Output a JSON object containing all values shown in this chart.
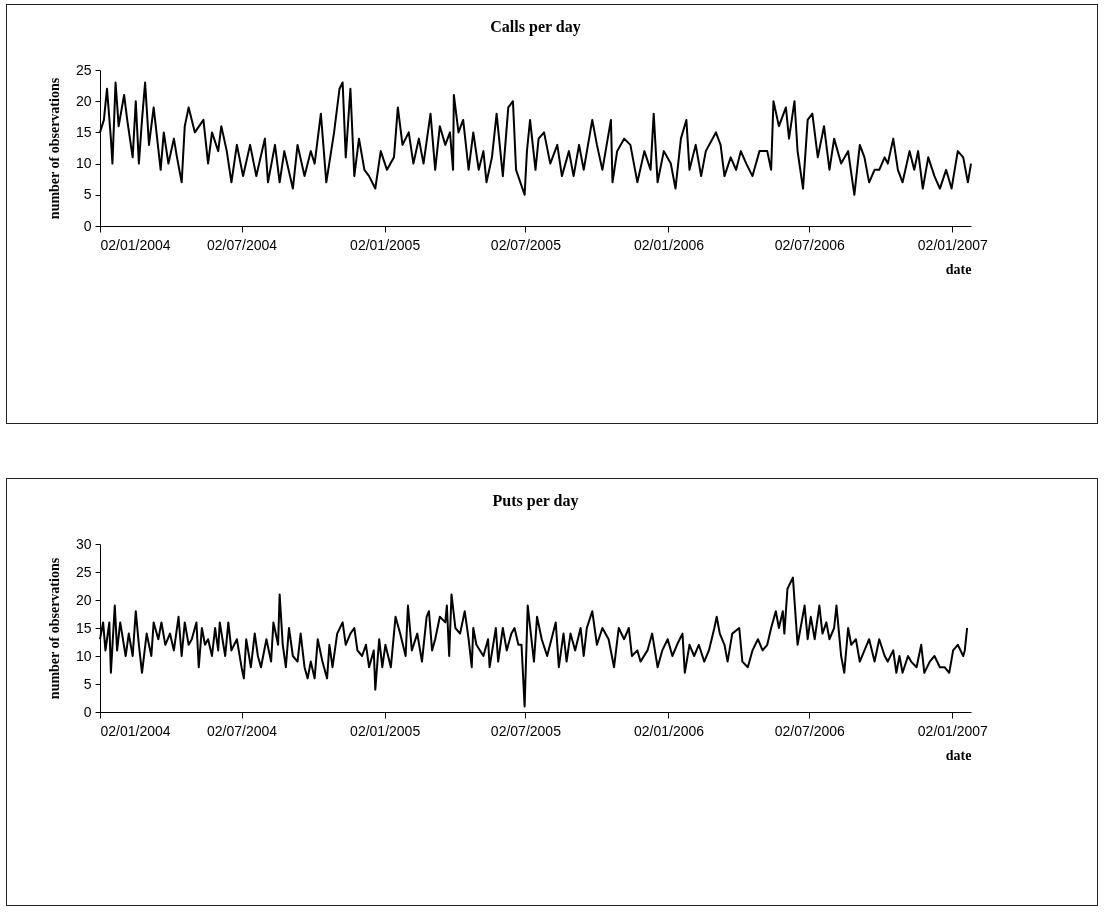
{
  "chart_data": [
    {
      "type": "line",
      "title": "Calls per day",
      "xlabel": "date",
      "ylabel": "number of observations",
      "color": "#000000",
      "xlim": [
        "2004-01-02",
        "2007-01-26"
      ],
      "ylim": [
        0,
        25
      ],
      "yticks": [
        0,
        5,
        10,
        15,
        20,
        25
      ],
      "xticks": [
        {
          "value": "2004-01-02",
          "label": "02/01/2004"
        },
        {
          "value": "2004-07-02",
          "label": "02/07/2004"
        },
        {
          "value": "2005-01-02",
          "label": "02/01/2005"
        },
        {
          "value": "2005-07-02",
          "label": "02/07/2005"
        },
        {
          "value": "2006-01-02",
          "label": "02/01/2006"
        },
        {
          "value": "2006-07-02",
          "label": "02/07/2006"
        },
        {
          "value": "2007-01-02",
          "label": "02/01/2007"
        }
      ],
      "x": [
        "2004-01-02",
        "2004-01-07",
        "2004-01-11",
        "2004-01-16",
        "2004-01-18",
        "2004-01-22",
        "2004-01-26",
        "2004-02-02",
        "2004-02-06",
        "2004-02-13",
        "2004-02-17",
        "2004-02-21",
        "2004-02-25",
        "2004-02-29",
        "2004-03-05",
        "2004-03-11",
        "2004-03-20",
        "2004-03-24",
        "2004-03-30",
        "2004-04-06",
        "2004-04-10",
        "2004-04-16",
        "2004-04-20",
        "2004-04-25",
        "2004-05-03",
        "2004-05-14",
        "2004-05-20",
        "2004-05-25",
        "2004-06-02",
        "2004-06-06",
        "2004-06-13",
        "2004-06-19",
        "2004-06-26",
        "2004-07-04",
        "2004-07-13",
        "2004-07-21",
        "2004-08-01",
        "2004-08-05",
        "2004-08-14",
        "2004-08-20",
        "2004-08-26",
        "2004-09-06",
        "2004-09-12",
        "2004-09-21",
        "2004-09-29",
        "2004-10-04",
        "2004-10-12",
        "2004-10-19",
        "2004-10-29",
        "2004-11-05",
        "2004-11-09",
        "2004-11-13",
        "2004-11-19",
        "2004-11-24",
        "2004-11-30",
        "2004-12-07",
        "2004-12-13",
        "2004-12-21",
        "2004-12-28",
        "2005-01-05",
        "2005-01-14",
        "2005-01-19",
        "2005-01-25",
        "2005-02-02",
        "2005-02-08",
        "2005-02-15",
        "2005-02-21",
        "2005-03-02",
        "2005-03-08",
        "2005-03-14",
        "2005-03-21",
        "2005-03-27",
        "2005-03-31",
        "2005-04-01",
        "2005-04-07",
        "2005-04-13",
        "2005-04-20",
        "2005-04-26",
        "2005-05-03",
        "2005-05-09",
        "2005-05-13",
        "2005-05-20",
        "2005-05-26",
        "2005-06-03",
        "2005-06-10",
        "2005-06-16",
        "2005-06-20",
        "2005-07-01",
        "2005-07-04",
        "2005-07-08",
        "2005-07-15",
        "2005-07-19",
        "2005-07-26",
        "2005-08-03",
        "2005-08-12",
        "2005-08-18",
        "2005-08-27",
        "2005-09-02",
        "2005-09-09",
        "2005-09-15",
        "2005-09-26",
        "2005-10-02",
        "2005-10-09",
        "2005-10-20",
        "2005-10-22",
        "2005-10-28",
        "2005-11-06",
        "2005-11-14",
        "2005-11-23",
        "2005-12-02",
        "2005-12-10",
        "2005-12-14",
        "2005-12-19",
        "2005-12-27",
        "2006-01-05",
        "2006-01-11",
        "2006-01-18",
        "2006-01-25",
        "2006-01-29",
        "2006-02-06",
        "2006-02-13",
        "2006-02-19",
        "2006-03-04",
        "2006-03-10",
        "2006-03-15",
        "2006-03-23",
        "2006-03-30",
        "2006-04-05",
        "2006-04-12",
        "2006-04-20",
        "2006-04-29",
        "2006-05-09",
        "2006-05-14",
        "2006-05-17",
        "2006-05-24",
        "2006-06-02",
        "2006-06-06",
        "2006-06-13",
        "2006-06-17",
        "2006-06-24",
        "2006-06-30",
        "2006-07-06",
        "2006-07-13",
        "2006-07-21",
        "2006-07-28",
        "2006-08-03",
        "2006-08-12",
        "2006-08-21",
        "2006-08-29",
        "2006-09-05",
        "2006-09-11",
        "2006-09-17",
        "2006-09-24",
        "2006-09-30",
        "2006-10-07",
        "2006-10-11",
        "2006-10-18",
        "2006-10-24",
        "2006-10-30",
        "2006-11-08",
        "2006-11-14",
        "2006-11-19",
        "2006-11-25",
        "2006-12-02",
        "2006-12-10",
        "2006-12-17",
        "2006-12-25",
        "2007-01-01",
        "2007-01-09",
        "2007-01-16",
        "2007-01-22",
        "2007-01-26"
      ],
      "values": [
        15,
        17,
        22,
        14,
        10,
        23,
        16,
        21,
        17,
        11,
        20,
        10,
        17,
        23,
        13,
        19,
        9,
        15,
        10,
        14,
        11,
        7,
        16,
        19,
        15,
        17,
        10,
        15,
        12,
        16,
        12,
        7,
        13,
        8,
        13,
        8,
        14,
        7,
        13,
        7,
        12,
        6,
        13,
        8,
        12,
        10,
        18,
        7,
        15,
        22,
        23,
        11,
        22,
        8,
        14,
        9,
        8,
        6,
        12,
        9,
        11,
        19,
        13,
        15,
        10,
        14,
        10,
        18,
        9,
        16,
        13,
        15,
        9,
        21,
        15,
        17,
        9,
        15,
        9,
        12,
        7,
        11,
        18,
        8,
        19,
        20,
        9,
        5,
        12,
        17,
        9,
        14,
        15,
        10,
        13,
        8,
        12,
        8,
        13,
        9,
        17,
        13,
        9,
        17,
        7,
        12,
        14,
        13,
        7,
        12,
        9,
        18,
        7,
        12,
        10,
        6,
        14,
        17,
        9,
        13,
        8,
        12,
        15,
        13,
        8,
        11,
        9,
        12,
        10,
        8,
        12,
        12,
        9,
        20,
        16,
        19,
        14,
        20,
        12,
        6,
        17,
        18,
        11,
        16,
        9,
        14,
        10,
        12,
        5,
        13,
        11,
        7,
        9,
        9,
        11,
        10,
        14,
        9,
        7,
        12,
        9,
        12,
        6,
        11,
        8,
        6,
        9,
        6,
        12,
        11,
        7,
        10
      ]
    },
    {
      "type": "line",
      "title": "Puts per day",
      "xlabel": "date",
      "ylabel": "number of observations",
      "color": "#000000",
      "xlim": [
        "2004-01-02",
        "2007-01-26"
      ],
      "ylim": [
        0,
        30
      ],
      "yticks": [
        0,
        5,
        10,
        15,
        20,
        25,
        30
      ],
      "xticks": [
        {
          "value": "2004-01-02",
          "label": "02/01/2004"
        },
        {
          "value": "2004-07-02",
          "label": "02/07/2004"
        },
        {
          "value": "2005-01-02",
          "label": "02/01/2005"
        },
        {
          "value": "2005-07-02",
          "label": "02/07/2005"
        },
        {
          "value": "2006-01-02",
          "label": "02/01/2006"
        },
        {
          "value": "2006-07-02",
          "label": "02/07/2006"
        },
        {
          "value": "2007-01-02",
          "label": "02/01/2007"
        }
      ],
      "x": [
        "2004-01-02",
        "2004-01-06",
        "2004-01-09",
        "2004-01-14",
        "2004-01-16",
        "2004-01-21",
        "2004-01-24",
        "2004-01-28",
        "2004-02-04",
        "2004-02-08",
        "2004-02-13",
        "2004-02-17",
        "2004-02-21",
        "2004-02-25",
        "2004-03-02",
        "2004-03-08",
        "2004-03-11",
        "2004-03-17",
        "2004-03-21",
        "2004-03-26",
        "2004-04-01",
        "2004-04-06",
        "2004-04-12",
        "2004-04-16",
        "2004-04-20",
        "2004-04-25",
        "2004-04-29",
        "2004-05-05",
        "2004-05-08",
        "2004-05-12",
        "2004-05-16",
        "2004-05-20",
        "2004-05-25",
        "2004-05-29",
        "2004-06-02",
        "2004-06-04",
        "2004-06-11",
        "2004-06-15",
        "2004-06-19",
        "2004-06-26",
        "2004-07-02",
        "2004-07-05",
        "2004-07-08",
        "2004-07-14",
        "2004-07-19",
        "2004-07-23",
        "2004-07-27",
        "2004-08-03",
        "2004-08-09",
        "2004-08-12",
        "2004-08-18",
        "2004-08-20",
        "2004-08-24",
        "2004-08-28",
        "2004-09-01",
        "2004-09-06",
        "2004-09-12",
        "2004-09-16",
        "2004-09-21",
        "2004-09-25",
        "2004-09-29",
        "2004-10-04",
        "2004-10-08",
        "2004-10-14",
        "2004-10-20",
        "2004-10-23",
        "2004-10-27",
        "2004-11-02",
        "2004-11-09",
        "2004-11-13",
        "2004-11-19",
        "2004-11-24",
        "2004-11-28",
        "2004-12-04",
        "2004-12-09",
        "2004-12-13",
        "2004-12-19",
        "2004-12-21",
        "2004-12-26",
        "2004-12-30",
        "2005-01-03",
        "2005-01-10",
        "2005-01-16",
        "2005-01-22",
        "2005-01-29",
        "2005-02-01",
        "2005-02-06",
        "2005-02-13",
        "2005-02-19",
        "2005-02-25",
        "2005-02-28",
        "2005-03-04",
        "2005-03-08",
        "2005-03-14",
        "2005-03-21",
        "2005-03-23",
        "2005-03-26",
        "2005-03-29",
        "2005-04-03",
        "2005-04-09",
        "2005-04-15",
        "2005-04-20",
        "2005-04-24",
        "2005-04-26",
        "2005-04-30",
        "2005-05-09",
        "2005-05-15",
        "2005-05-17",
        "2005-05-25",
        "2005-05-28",
        "2005-06-03",
        "2005-06-08",
        "2005-06-14",
        "2005-06-18",
        "2005-06-23",
        "2005-06-27",
        "2005-07-01",
        "2005-07-05",
        "2005-07-13",
        "2005-07-17",
        "2005-07-23",
        "2005-07-30",
        "2005-08-10",
        "2005-08-14",
        "2005-08-20",
        "2005-08-24",
        "2005-08-29",
        "2005-09-04",
        "2005-09-11",
        "2005-09-15",
        "2005-09-19",
        "2005-09-26",
        "2005-10-02",
        "2005-10-09",
        "2005-10-17",
        "2005-10-24",
        "2005-10-30",
        "2005-11-06",
        "2005-11-12",
        "2005-11-16",
        "2005-11-23",
        "2005-11-27",
        "2005-12-06",
        "2005-12-12",
        "2005-12-19",
        "2005-12-25",
        "2006-01-01",
        "2006-01-07",
        "2006-01-13",
        "2006-01-20",
        "2006-01-23",
        "2006-01-29",
        "2006-02-04",
        "2006-02-10",
        "2006-02-17",
        "2006-02-23",
        "2006-03-02",
        "2006-03-05",
        "2006-03-09",
        "2006-03-15",
        "2006-03-19",
        "2006-03-25",
        "2006-04-03",
        "2006-04-07",
        "2006-04-14",
        "2006-04-20",
        "2006-04-27",
        "2006-05-03",
        "2006-05-09",
        "2006-05-14",
        "2006-05-20",
        "2006-05-24",
        "2006-05-29",
        "2006-05-31",
        "2006-06-04",
        "2006-06-11",
        "2006-06-17",
        "2006-06-26",
        "2006-06-30",
        "2006-07-04",
        "2006-07-09",
        "2006-07-15",
        "2006-07-19",
        "2006-07-24",
        "2006-07-28",
        "2006-08-03",
        "2006-08-06",
        "2006-08-12",
        "2006-08-16",
        "2006-08-21",
        "2006-08-25",
        "2006-08-31",
        "2006-09-05",
        "2006-09-11",
        "2006-09-17",
        "2006-09-24",
        "2006-09-30",
        "2006-10-07",
        "2006-10-11",
        "2006-10-18",
        "2006-10-22",
        "2006-10-26",
        "2006-10-30",
        "2006-11-06",
        "2006-11-10",
        "2006-11-17",
        "2006-11-23",
        "2006-11-27",
        "2006-12-04",
        "2006-12-10",
        "2006-12-17",
        "2006-12-23",
        "2006-12-29",
        "2007-01-03",
        "2007-01-09",
        "2007-01-16",
        "2007-01-18",
        "2007-01-21"
      ],
      "values": [
        13,
        16,
        11,
        16,
        7,
        19,
        11,
        16,
        10,
        14,
        10,
        18,
        12,
        7,
        14,
        10,
        16,
        13,
        16,
        12,
        14,
        11,
        17,
        10,
        16,
        12,
        13,
        16,
        8,
        15,
        12,
        13,
        10,
        15,
        11,
        16,
        10,
        16,
        11,
        13,
        8,
        6,
        13,
        8,
        14,
        10,
        8,
        13,
        9,
        16,
        12,
        21,
        12,
        8,
        15,
        10,
        9,
        14,
        8,
        6,
        9,
        6,
        13,
        9,
        6,
        12,
        8,
        14,
        16,
        12,
        14,
        15,
        11,
        10,
        12,
        8,
        11,
        4,
        13,
        8,
        12,
        8,
        17,
        14,
        10,
        19,
        11,
        14,
        9,
        17,
        18,
        11,
        13,
        17,
        16,
        19,
        10,
        21,
        15,
        14,
        18,
        13,
        8,
        15,
        12,
        10,
        13,
        8,
        15,
        9,
        15,
        11,
        14,
        15,
        12,
        12,
        1,
        19,
        9,
        17,
        13,
        10,
        16,
        8,
        14,
        9,
        14,
        11,
        15,
        10,
        15,
        18,
        12,
        15,
        13,
        8,
        15,
        13,
        15,
        10,
        11,
        9,
        11,
        14,
        8,
        11,
        13,
        10,
        12,
        14,
        7,
        12,
        10,
        12,
        9,
        11,
        15,
        17,
        14,
        12,
        9,
        14,
        15,
        9,
        8,
        11,
        13,
        11,
        12,
        15,
        18,
        15,
        18,
        14,
        22,
        24,
        12,
        19,
        13,
        17,
        13,
        19,
        14,
        16,
        13,
        15,
        19,
        10,
        7,
        15,
        12,
        13,
        9,
        11,
        13,
        9,
        13,
        10,
        9,
        11,
        7,
        10,
        7,
        10,
        9,
        8,
        12,
        7,
        9,
        10,
        8,
        8,
        7,
        11,
        12,
        10,
        11,
        15
      ]
    }
  ]
}
